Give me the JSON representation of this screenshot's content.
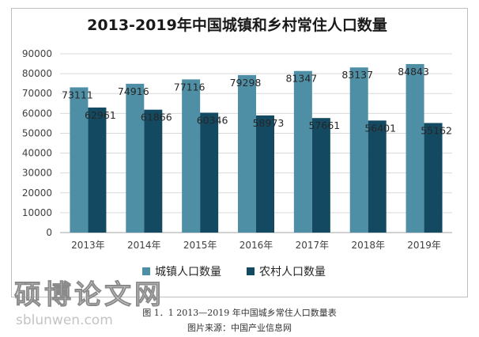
{
  "chart_data": {
    "type": "bar",
    "title": "2013-2019年中国城镇和乡村常住人口数量",
    "categories": [
      "2013年",
      "2014年",
      "2015年",
      "2016年",
      "2017年",
      "2018年",
      "2019年"
    ],
    "series": [
      {
        "name": "城镇人口数量",
        "color": "#4f8fa6",
        "values": [
          73111,
          74916,
          77116,
          79298,
          81347,
          83137,
          84843
        ]
      },
      {
        "name": "农村人口数量",
        "color": "#134a62",
        "values": [
          62961,
          61866,
          60346,
          58973,
          57661,
          56401,
          55162
        ]
      }
    ],
    "y_ticks": [
      "0",
      "10000",
      "20000",
      "30000",
      "40000",
      "50000",
      "60000",
      "70000",
      "80000",
      "90000"
    ],
    "ylim": [
      0,
      90000
    ],
    "legend_position": "bottom",
    "grid": true
  },
  "watermark": {
    "text": "硕博论文网",
    "url": "sblunwen.com"
  },
  "caption": "图 1．1  2013—2019 年中国城乡常住人口数量表",
  "source": "图片来源：中国产业信息网"
}
